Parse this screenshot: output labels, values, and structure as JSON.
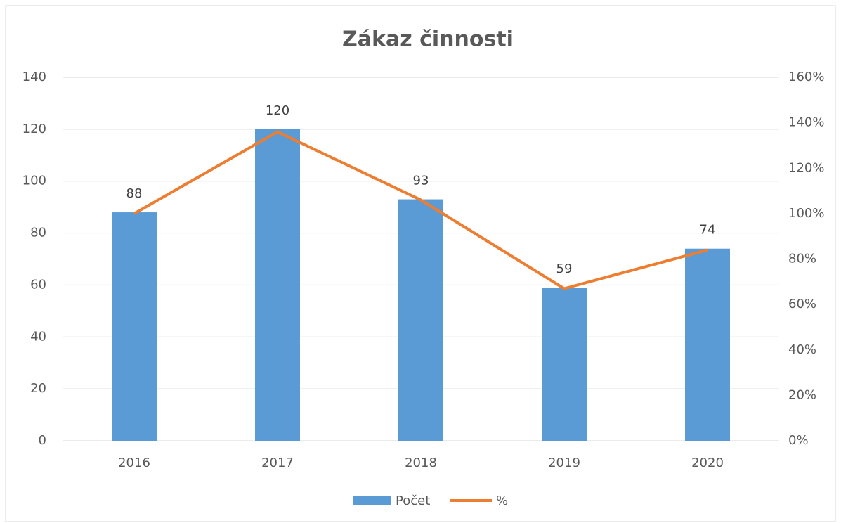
{
  "chart_data": {
    "type": "bar_line",
    "title": "Zákaz činnosti",
    "categories": [
      "2016",
      "2017",
      "2018",
      "2019",
      "2020"
    ],
    "series": [
      {
        "name": "Počet",
        "type": "bar",
        "color": "#5b9bd5",
        "values": [
          88,
          120,
          93,
          59,
          74
        ]
      },
      {
        "name": "%",
        "type": "line",
        "axis": "y2",
        "color": "#ed7d31",
        "values": [
          100,
          136,
          106,
          67,
          84
        ]
      }
    ],
    "ylim": [
      0,
      140
    ],
    "yticks": [
      0,
      20,
      40,
      60,
      80,
      100,
      120,
      140
    ],
    "y2lim": [
      0,
      160
    ],
    "y2ticks": [
      {
        "value": 0,
        "label": "0%"
      },
      {
        "value": 20,
        "label": "20%"
      },
      {
        "value": 40,
        "label": "40%"
      },
      {
        "value": 60,
        "label": "60%"
      },
      {
        "value": 80,
        "label": "80%"
      },
      {
        "value": 100,
        "label": "100%"
      },
      {
        "value": 120,
        "label": "120%"
      },
      {
        "value": 140,
        "label": "140%"
      },
      {
        "value": 160,
        "label": "160%"
      }
    ],
    "grid": true,
    "legend": "bottom"
  }
}
